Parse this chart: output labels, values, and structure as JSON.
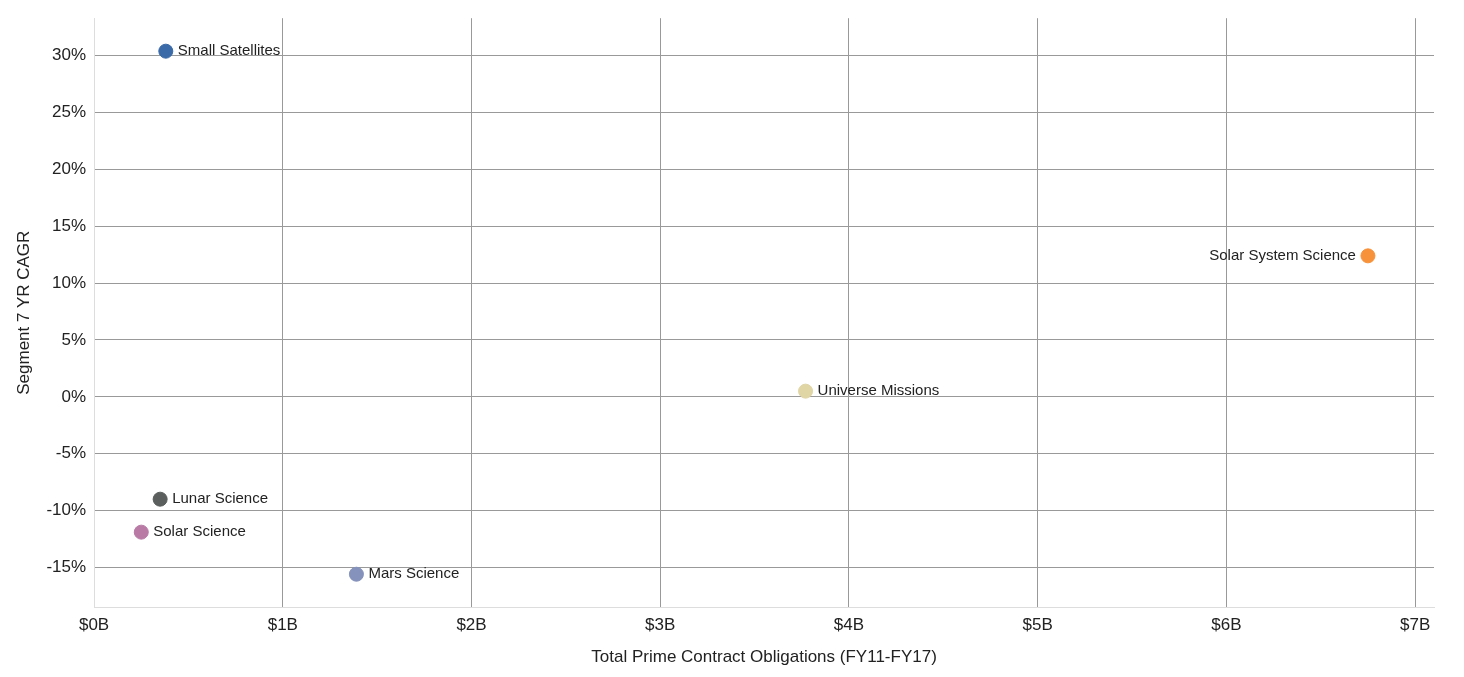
{
  "chart_data": {
    "type": "scatter",
    "xlabel": "Total Prime Contract Obligations (FY11-FY17)",
    "ylabel": "Segment 7 YR CAGR",
    "series": [
      {
        "name": "Small Satellites",
        "color": "#3a6aa8",
        "x": [
          0.38
        ],
        "values": [
          30.4
        ]
      },
      {
        "name": "Solar System Science",
        "color": "#f7913a",
        "x": [
          6.75
        ],
        "values": [
          12.4
        ]
      },
      {
        "name": "Universe Missions",
        "color": "#e0d5a5",
        "x": [
          3.77
        ],
        "values": [
          0.5
        ]
      },
      {
        "name": "Lunar Science",
        "color": "#5b605f",
        "x": [
          0.35
        ],
        "values": [
          -9.0
        ]
      },
      {
        "name": "Solar Science",
        "color": "#b97ba6",
        "x": [
          0.25
        ],
        "values": [
          -11.9
        ]
      },
      {
        "name": "Mars Science",
        "color": "#8592bb",
        "x": [
          1.39
        ],
        "values": [
          -15.6
        ]
      }
    ],
    "xlim": [
      0,
      7.1
    ],
    "ylim": [
      -18.5,
      33.3
    ],
    "xticks": [
      {
        "value": 0,
        "label": "$0B"
      },
      {
        "value": 1,
        "label": "$1B"
      },
      {
        "value": 2,
        "label": "$2B"
      },
      {
        "value": 3,
        "label": "$3B"
      },
      {
        "value": 4,
        "label": "$4B"
      },
      {
        "value": 5,
        "label": "$5B"
      },
      {
        "value": 6,
        "label": "$6B"
      },
      {
        "value": 7,
        "label": "$7B"
      }
    ],
    "yticks": [
      {
        "value": -15,
        "label": "-15%"
      },
      {
        "value": -10,
        "label": "-10%"
      },
      {
        "value": -5,
        "label": "-5%"
      },
      {
        "value": 0,
        "label": "0%"
      },
      {
        "value": 5,
        "label": "5%"
      },
      {
        "value": 10,
        "label": "10%"
      },
      {
        "value": 15,
        "label": "15%"
      },
      {
        "value": 20,
        "label": "20%"
      },
      {
        "value": 25,
        "label": "25%"
      },
      {
        "value": 30,
        "label": "30%"
      }
    ],
    "grid": true,
    "legend": false,
    "marker": "circle"
  }
}
